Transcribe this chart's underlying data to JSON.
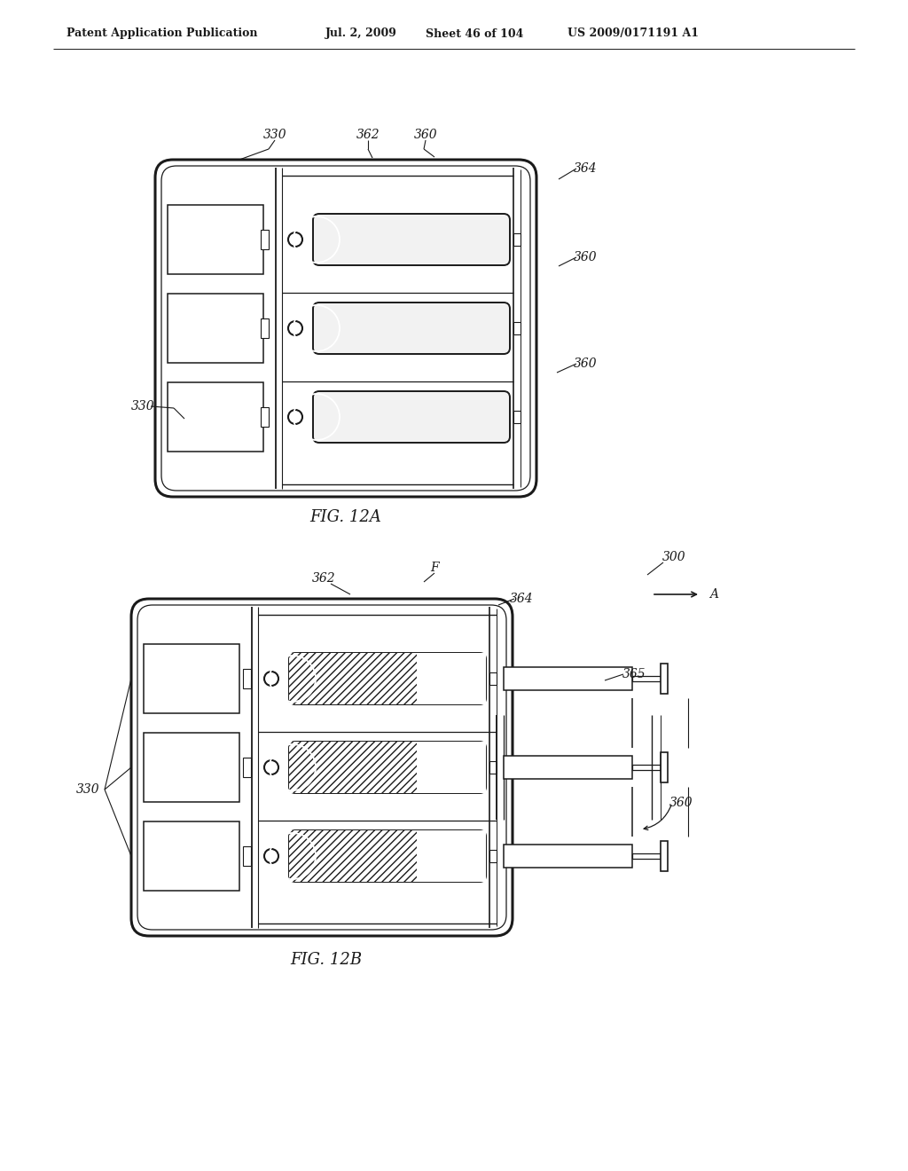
{
  "bg_color": "#ffffff",
  "header_text": "Patent Application Publication",
  "header_date": "Jul. 2, 2009",
  "header_sheet": "Sheet 46 of 104",
  "header_patent": "US 2009/0171191 A1",
  "fig_label_a": "FIG. 12A",
  "fig_label_b": "FIG. 12B",
  "lc": "#1a1a1a",
  "fig12a": {
    "ox": 175,
    "oy": 760,
    "ow": 430,
    "oh": 380,
    "corner_r": 20
  },
  "fig12b": {
    "ox": 148,
    "oy": 265,
    "ow": 430,
    "oh": 380,
    "corner_r": 20
  }
}
